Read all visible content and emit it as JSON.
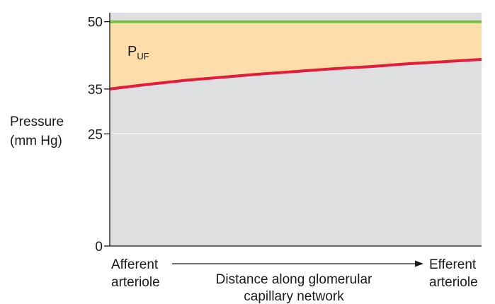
{
  "chart_data": {
    "type": "area",
    "ylabel_line1": "Pressure",
    "ylabel_line2": "(mm Hg)",
    "ylim": [
      0,
      52
    ],
    "y_ticks": [
      0,
      25,
      35,
      50
    ],
    "x_left_label_line1": "Afferent",
    "x_left_label_line2": "arteriole",
    "x_right_label_line1": "Efferent",
    "x_right_label_line2": "arteriole",
    "x_center_label_line1": "Distance along glomerular",
    "x_center_label_line2": "capillary network",
    "area_label": "P",
    "area_label_sub": "UF",
    "grid": "horizontal at 25",
    "series": [
      {
        "color": "#7dc142",
        "x": [
          0,
          1
        ],
        "y": [
          50,
          50
        ]
      },
      {
        "color": "#e31b3c",
        "x": [
          0,
          0.1,
          0.2,
          0.3,
          0.4,
          0.5,
          0.6,
          0.7,
          0.8,
          0.9,
          1.0
        ],
        "y": [
          35,
          36.0,
          36.9,
          37.6,
          38.3,
          38.9,
          39.5,
          40.0,
          40.6,
          41.1,
          41.6
        ]
      }
    ],
    "colors": {
      "plot_bg": "#dedfe0",
      "area_fill": "#fddeaa",
      "grid": "#ffffff",
      "axis": "#1a1a1a"
    }
  }
}
